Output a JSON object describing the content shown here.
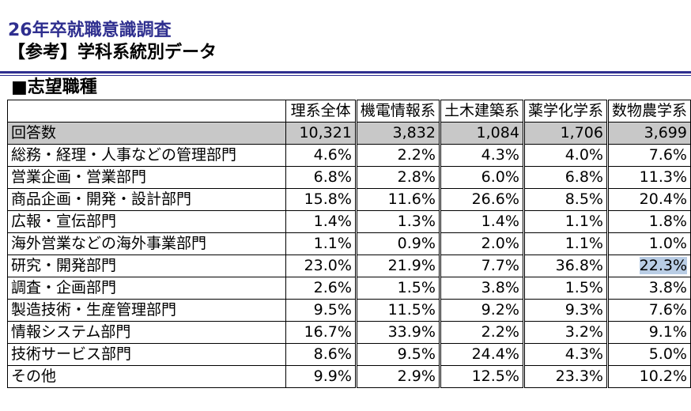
{
  "header": {
    "title_line1": "26年卒就職意識調査",
    "title_line2": "【参考】学科系統別データ",
    "section_title": "■志望職種"
  },
  "table": {
    "columns": [
      "理系全体",
      "機電情報系",
      "土木建築系",
      "薬学化学系",
      "数物農学系"
    ],
    "rows": [
      {
        "label": "回答数",
        "values": [
          "10,321",
          "3,832",
          "1,084",
          "1,706",
          "3,699"
        ]
      },
      {
        "label": "総務・経理・人事などの管理部門",
        "values": [
          "4.6%",
          "2.2%",
          "4.3%",
          "4.0%",
          "7.6%"
        ]
      },
      {
        "label": "営業企画・営業部門",
        "values": [
          "6.8%",
          "2.8%",
          "6.0%",
          "6.8%",
          "11.3%"
        ]
      },
      {
        "label": "商品企画・開発・設計部門",
        "values": [
          "15.8%",
          "11.6%",
          "26.6%",
          "8.5%",
          "20.4%"
        ]
      },
      {
        "label": "広報・宣伝部門",
        "values": [
          "1.4%",
          "1.3%",
          "1.4%",
          "1.1%",
          "1.8%"
        ]
      },
      {
        "label": "海外営業などの海外事業部門",
        "values": [
          "1.1%",
          "0.9%",
          "2.0%",
          "1.1%",
          "1.0%"
        ]
      },
      {
        "label": "研究・開発部門",
        "values": [
          "23.0%",
          "21.9%",
          "7.7%",
          "36.8%",
          "22.3%"
        ]
      },
      {
        "label": "調査・企画部門",
        "values": [
          "2.6%",
          "1.5%",
          "3.8%",
          "1.5%",
          "3.8%"
        ]
      },
      {
        "label": "製造技術・生産管理部門",
        "values": [
          "9.5%",
          "11.5%",
          "9.2%",
          "9.3%",
          "7.6%"
        ]
      },
      {
        "label": "情報システム部門",
        "values": [
          "16.7%",
          "33.9%",
          "2.2%",
          "3.2%",
          "9.1%"
        ]
      },
      {
        "label": "技術サービス部門",
        "values": [
          "8.6%",
          "9.5%",
          "24.4%",
          "4.3%",
          "5.0%"
        ]
      },
      {
        "label": "その他",
        "values": [
          "9.9%",
          "2.9%",
          "12.5%",
          "23.3%",
          "10.2%"
        ]
      }
    ],
    "highlight_color": "#b9cde5",
    "count_row_color": "#c8c8c8"
  }
}
